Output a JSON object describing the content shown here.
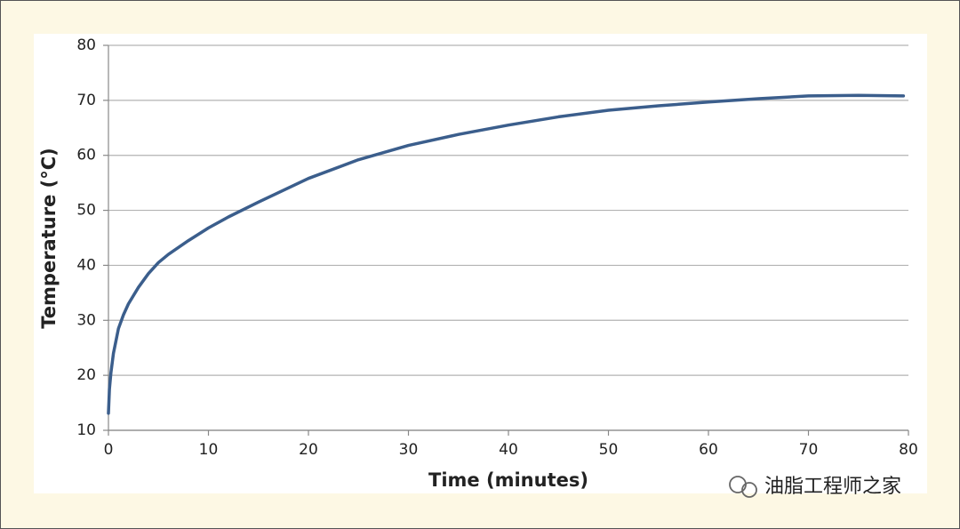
{
  "chart_data": {
    "type": "line",
    "x_label": "Time (minutes)",
    "y_label": "Temperature (°C)",
    "x": [
      0,
      0.1,
      0.25,
      0.5,
      1,
      1.5,
      2,
      3,
      4,
      5,
      6,
      8,
      10,
      12,
      15,
      20,
      25,
      30,
      35,
      40,
      45,
      50,
      55,
      60,
      65,
      70,
      75,
      79.5
    ],
    "series": [
      {
        "color": "#3b5e8c",
        "values": [
          13.1,
          17.5,
          20.5,
          24,
          28.5,
          31,
          33,
          36,
          38.5,
          40.5,
          42,
          44.5,
          46.8,
          48.8,
          51.5,
          55.8,
          59.2,
          61.8,
          63.8,
          65.5,
          67,
          68.2,
          69,
          69.7,
          70.3,
          70.8,
          70.9,
          70.8
        ]
      }
    ],
    "xlim": [
      0,
      80
    ],
    "xticks": [
      0,
      10,
      20,
      30,
      40,
      50,
      60,
      70,
      80
    ],
    "ylim": [
      10,
      80
    ],
    "yticks": [
      10,
      20,
      30,
      40,
      50,
      60,
      70,
      80
    ],
    "grid": true
  },
  "watermark": "油脂工程师之家"
}
